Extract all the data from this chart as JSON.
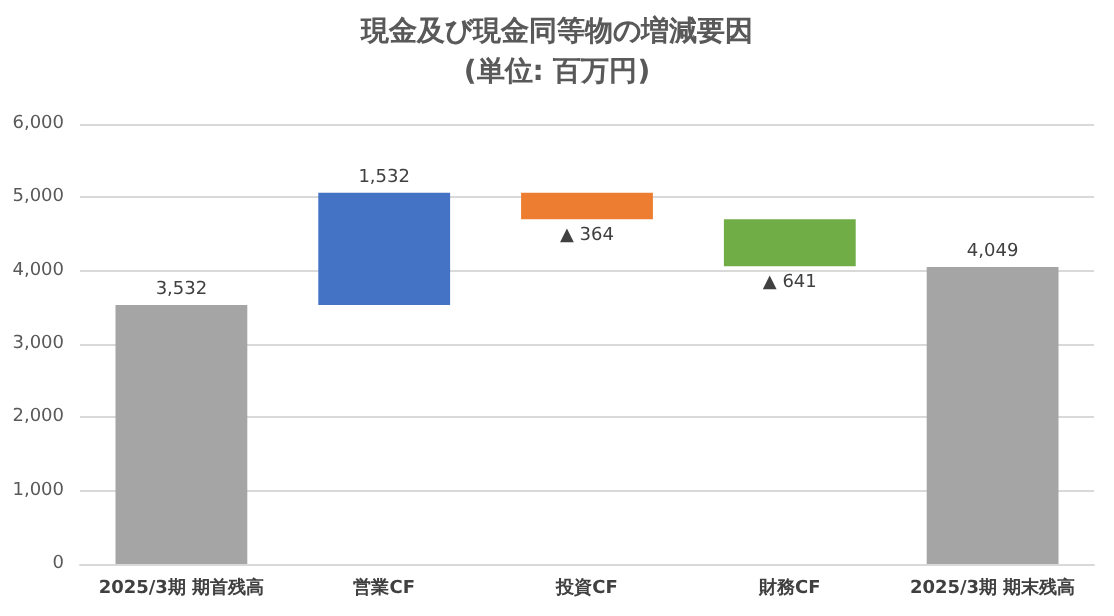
{
  "chart_data": {
    "type": "bar",
    "title": "現金及び現金同等物の増減要因",
    "subtitle": "(単位: 百万円)",
    "categories": [
      "2025/3期 期首残高",
      "営業CF",
      "投資CF",
      "財務CF",
      "2025/3期 期末残高"
    ],
    "values": [
      3532,
      1532,
      -364,
      -641,
      4049
    ],
    "base": [
      0,
      3532,
      5064,
      4700,
      0
    ],
    "colors": [
      "#a5a5a5",
      "#4472c4",
      "#ed7d31",
      "#70ad47",
      "#a5a5a5"
    ],
    "value_labels": [
      "3,532",
      "1,532",
      "▲ 364",
      "▲ 641",
      "4,049"
    ],
    "ylim": [
      0,
      6000
    ],
    "yticks": [
      {
        "value": 0,
        "label": "0"
      },
      {
        "value": 1000,
        "label": "1,000"
      },
      {
        "value": 2000,
        "label": "2,000"
      },
      {
        "value": 3000,
        "label": "3,000"
      },
      {
        "value": 4000,
        "label": "4,000"
      },
      {
        "value": 5000,
        "label": "5,000"
      },
      {
        "value": 6000,
        "label": "6,000"
      }
    ],
    "grid": "y"
  }
}
